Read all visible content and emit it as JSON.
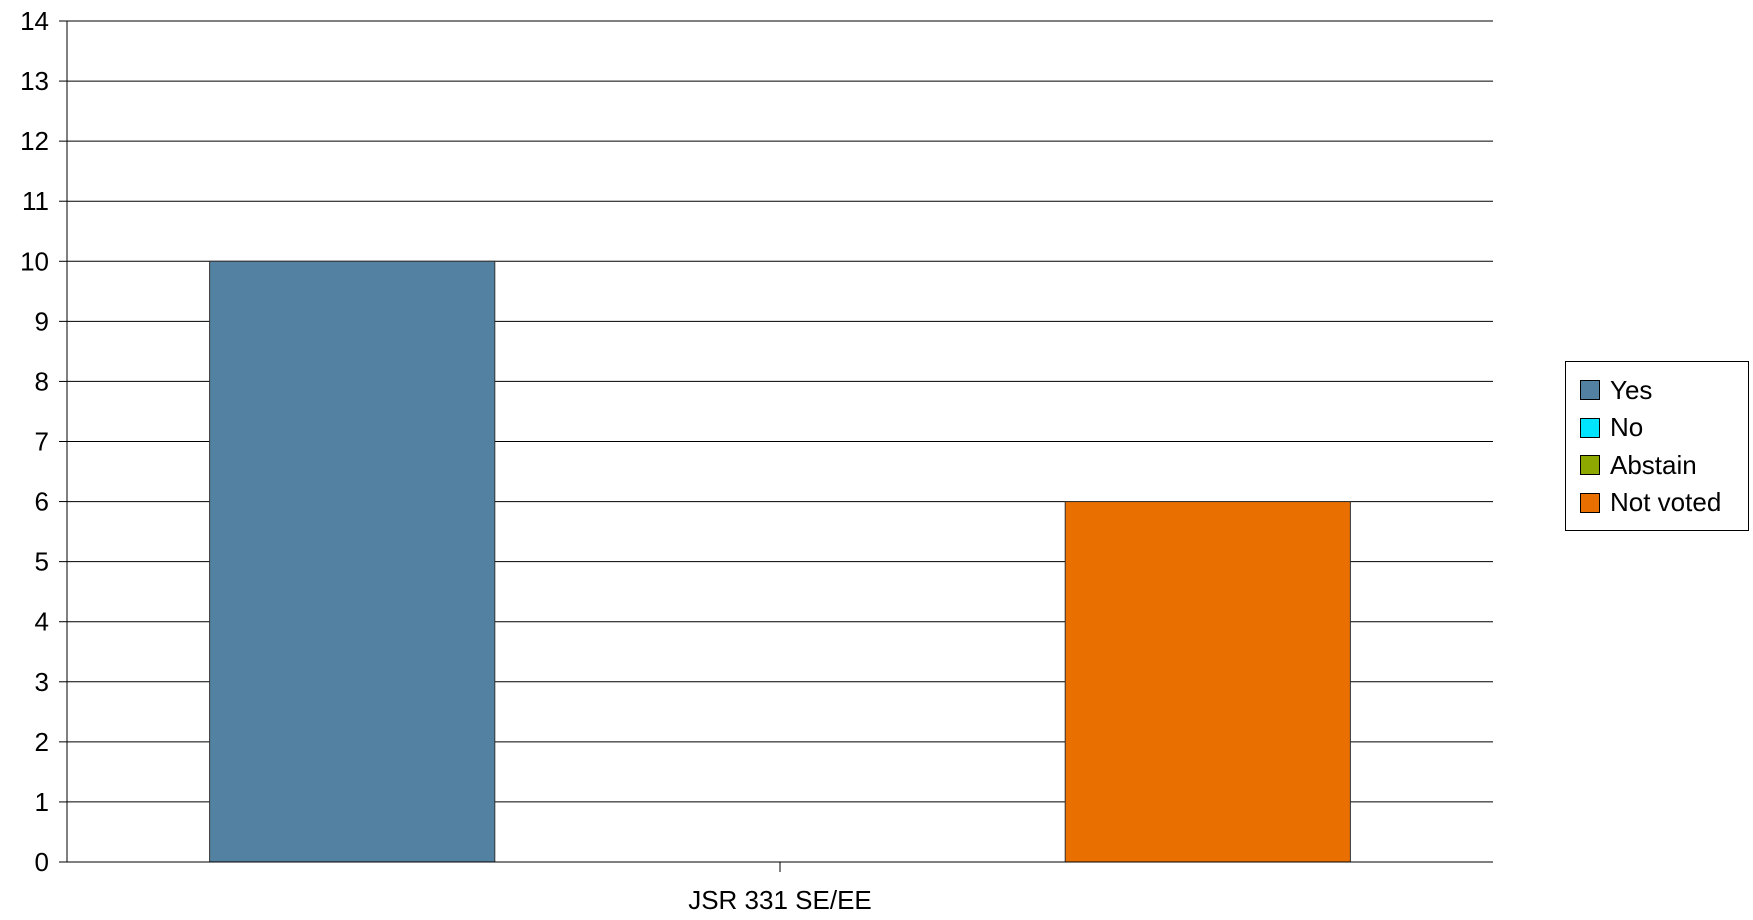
{
  "chart_data": {
    "type": "bar",
    "categories": [
      "JSR 331 SE/EE"
    ],
    "series": [
      {
        "name": "Yes",
        "values": [
          10
        ],
        "color": "#5381a2"
      },
      {
        "name": "No",
        "values": [
          0
        ],
        "color": "#00e5ff"
      },
      {
        "name": "Abstain",
        "values": [
          0
        ],
        "color": "#8fa800"
      },
      {
        "name": "Not voted",
        "values": [
          6
        ],
        "color": "#e86f00"
      }
    ],
    "title": "",
    "xlabel": "",
    "ylabel": "",
    "ylim": [
      0,
      14
    ],
    "yticks": [
      "0",
      "1",
      "2",
      "3",
      "4",
      "5",
      "6",
      "7",
      "8",
      "9",
      "10",
      "11",
      "12",
      "13",
      "14"
    ],
    "grid": true,
    "legend_position": "right"
  }
}
